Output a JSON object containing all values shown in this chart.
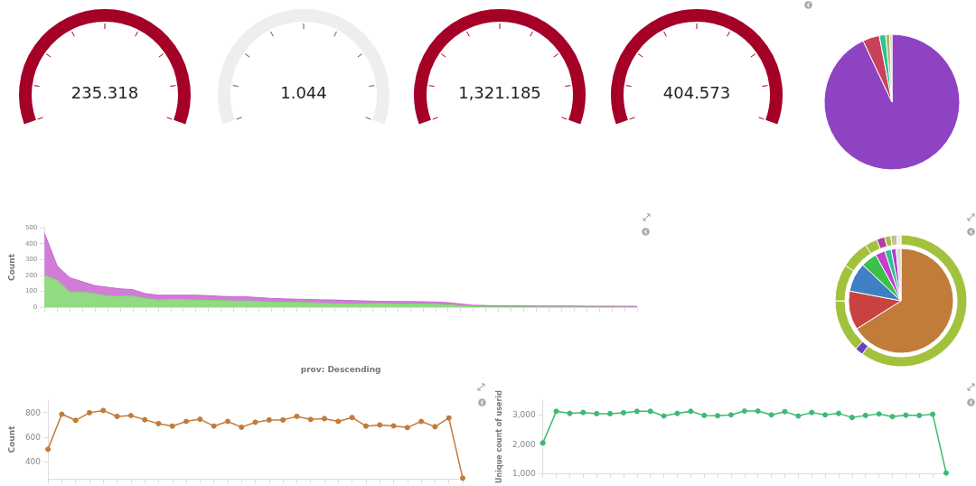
{
  "chart_data": [
    {
      "type": "other",
      "values": [
        235.318
      ],
      "value_labels": [
        "235.318"
      ],
      "colors": [
        "#a50026"
      ]
    },
    {
      "type": "other",
      "values": [
        1.044
      ],
      "value_labels": [
        "1.044"
      ],
      "colors": [
        "#eeeeee"
      ]
    },
    {
      "type": "other",
      "values": [
        1321.185
      ],
      "value_labels": [
        "1,321.185"
      ],
      "colors": [
        "#a50026"
      ]
    },
    {
      "type": "other",
      "values": [
        404.573
      ],
      "value_labels": [
        "404.573"
      ],
      "colors": [
        "#a50026"
      ]
    },
    {
      "type": "pie",
      "categories": [
        null,
        null,
        null,
        null,
        null
      ],
      "values": [
        93,
        4,
        1.5,
        1,
        0.5
      ],
      "colors": [
        "#8e44c2",
        "#c9425a",
        "#2ec28c",
        "#a9b77a",
        "#e0d080"
      ]
    },
    {
      "type": "area",
      "stacked": true,
      "xlabel": "prov: Descending",
      "ylabel": "Count",
      "ylim": [
        0,
        500
      ],
      "yticks": [
        0,
        100,
        200,
        300,
        400,
        500
      ],
      "categories": [
        null,
        null,
        null,
        null,
        null,
        null,
        null,
        null,
        null,
        null,
        null,
        null,
        null,
        null,
        null,
        null,
        null,
        null,
        null,
        null,
        null,
        null,
        null,
        null,
        null,
        null,
        null,
        null,
        null,
        null,
        null,
        null,
        null,
        null,
        null,
        null,
        null,
        null,
        null,
        null,
        null,
        null,
        null,
        null,
        null,
        null,
        null,
        null
      ],
      "series": [
        {
          "color": "#7fd46f",
          "values": [
            200,
            170,
            95,
            95,
            85,
            70,
            70,
            70,
            55,
            45,
            48,
            48,
            45,
            45,
            42,
            38,
            40,
            35,
            32,
            30,
            30,
            28,
            25,
            22,
            20,
            22,
            22,
            22,
            20,
            20,
            20,
            18,
            15,
            10,
            5,
            3,
            2,
            2,
            2,
            2,
            2,
            2,
            2,
            2,
            2,
            2,
            2,
            2
          ]
        },
        {
          "color": "#c965d0",
          "values": [
            265,
            90,
            90,
            65,
            50,
            55,
            45,
            40,
            30,
            30,
            27,
            27,
            30,
            27,
            26,
            27,
            25,
            25,
            23,
            22,
            20,
            20,
            21,
            23,
            22,
            18,
            16,
            14,
            15,
            15,
            14,
            14,
            13,
            10,
            7,
            7,
            6,
            6,
            6,
            5,
            5,
            5,
            5,
            4,
            4,
            4,
            3,
            3
          ]
        }
      ]
    },
    {
      "type": "donut",
      "series": [
        {
          "values": [
            66,
            12,
            9,
            5,
            3,
            2,
            1.5,
            1.5
          ],
          "colors": [
            "#c27c3a",
            "#c9423f",
            "#3f7fc4",
            "#3cc04a",
            "#c23fcf",
            "#2ec28c",
            "#b03fcf",
            "#d8d8d8"
          ]
        },
        {
          "values": [
            60,
            2,
            13,
            9,
            7,
            3,
            2,
            1.5,
            1.5,
            1
          ],
          "colors": [
            "#a2c23e",
            "#6a3fc0",
            "#a2c23e",
            "#a2c23e",
            "#a2c23e",
            "#a2c23e",
            "#b03f9f",
            "#a2c23e",
            "#c2c290",
            "#eeeeee"
          ]
        }
      ]
    },
    {
      "type": "line",
      "marker": "circle",
      "ylabel": "Count",
      "ylim": [
        260,
        900
      ],
      "yticks": [
        400,
        600,
        800
      ],
      "categories": [
        null,
        null,
        null,
        null,
        null,
        null,
        null,
        null,
        null,
        null,
        null,
        null,
        null,
        null,
        null,
        null,
        null,
        null,
        null,
        null,
        null,
        null,
        null,
        null,
        null,
        null,
        null,
        null,
        null,
        null,
        null
      ],
      "series": [
        {
          "color": "#c27c3a",
          "values": [
            500,
            786,
            736,
            798,
            816,
            768,
            775,
            741,
            709,
            689,
            727,
            745,
            689,
            727,
            680,
            720,
            739,
            739,
            768,
            743,
            750,
            727,
            759,
            689,
            698,
            691,
            677,
            727,
            684,
            755,
            265
          ]
        }
      ]
    },
    {
      "type": "line",
      "marker": "circle",
      "ylabel": "Unique count of userid",
      "ylim": [
        1000,
        3500
      ],
      "yticks": [
        {
          "value": 1000,
          "label": "1,000"
        },
        {
          "value": 2000,
          "label": "2,000"
        },
        {
          "value": 3000,
          "label": "3,000"
        }
      ],
      "categories": [
        null,
        null,
        null,
        null,
        null,
        null,
        null,
        null,
        null,
        null,
        null,
        null,
        null,
        null,
        null,
        null,
        null,
        null,
        null,
        null,
        null,
        null,
        null,
        null,
        null,
        null,
        null,
        null,
        null,
        null,
        null
      ],
      "series": [
        {
          "color": "#3dba74",
          "values": [
            2040,
            3120,
            3050,
            3080,
            3040,
            3040,
            3070,
            3120,
            3120,
            2960,
            3050,
            3120,
            2980,
            2970,
            3000,
            3130,
            3130,
            3000,
            3110,
            2960,
            3080,
            3000,
            3050,
            2910,
            2980,
            3030,
            2940,
            2990,
            2980,
            3020,
            1020
          ]
        }
      ]
    }
  ]
}
